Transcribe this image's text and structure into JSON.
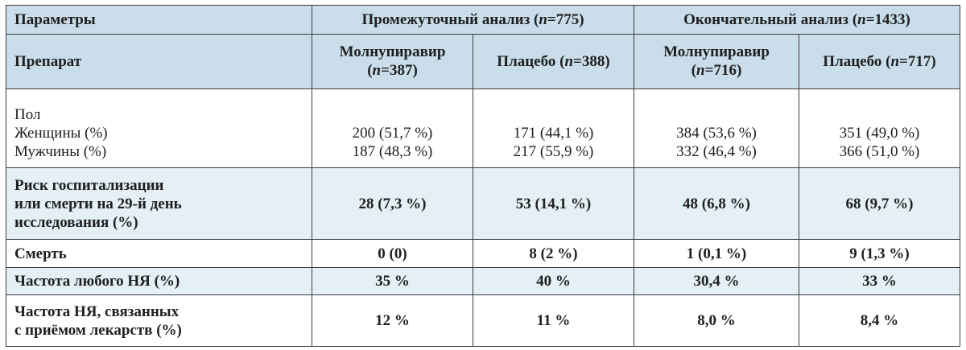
{
  "table": {
    "header1": {
      "params_label": "Параметры",
      "interim_title": "Промежуточный анализ (",
      "interim_n": "n",
      "interim_suffix": "=775)",
      "final_title": "Окончательный анализ (",
      "final_n": "n",
      "final_suffix": "=1433)"
    },
    "header2": {
      "drug_label": "Препарат",
      "cols": [
        {
          "line1": "Молнупиравир",
          "n": "n",
          "line2": "=387)",
          "pre": "("
        },
        {
          "line1": "Плацебо (",
          "n": "n",
          "line2": "=388)"
        },
        {
          "line1": "Молнупиравир",
          "n": "n",
          "line2": "=716)",
          "pre": "("
        },
        {
          "line1": "Плацебо (",
          "n": "n",
          "line2": "=717)"
        }
      ]
    },
    "rows": {
      "sex": {
        "label_title": "Пол",
        "label_women": "Женщины (%)",
        "label_men": "Мужчины (%)",
        "women": [
          "200 (51,7 %)",
          "171 (44,1 %)",
          "384 (53,6 %)",
          "351 (49,0 %)"
        ],
        "men": [
          "187 (48,3 %)",
          "217 (55,9 %)",
          "332 (46,4 %)",
          "366 (51,0 %)"
        ]
      },
      "risk": {
        "label_l1": "Риск госпитализации",
        "label_l2": "или смерти на 29-й день",
        "label_l3": "исследования (%)",
        "values": [
          "28 (7,3 %)",
          "53 (14,1 %)",
          "48 (6,8 %)",
          "68 (9,7 %)"
        ]
      },
      "death": {
        "label": "Смерть",
        "values": [
          "0 (0)",
          "8 (2 %)",
          "1 (0,1 %)",
          "9 (1,3 %)"
        ]
      },
      "ae_any": {
        "label": "Частота любого НЯ (%)",
        "values": [
          "35 %",
          "40 %",
          "30,4 %",
          "33 %"
        ]
      },
      "ae_drug": {
        "label_l1": "Частота НЯ, связанных",
        "label_l2": "с приёмом лекарств (%)",
        "values": [
          "12 %",
          "11 %",
          "8,0 %",
          "8,4 %"
        ]
      }
    }
  }
}
